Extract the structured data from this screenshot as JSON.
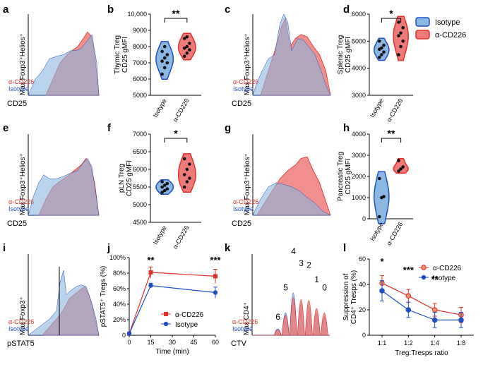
{
  "colors": {
    "isotype_fill": "#8ab8e0",
    "isotype_line": "#1f4fc4",
    "cd226_fill": "#ef7a7a",
    "cd226_line": "#e0302a",
    "overlap": "#8a82c4"
  },
  "legend": {
    "isotype": "Isotype",
    "cd226": "α-CD226"
  },
  "chart_data": [
    {
      "panel": "a",
      "type": "histogram",
      "xlabel": "CD25",
      "ylabel": "Max Foxp3⁺Helios⁺",
      "legend": [
        "α-CD226",
        "Isotype"
      ]
    },
    {
      "panel": "b",
      "type": "violin",
      "title": "Thymic Treg",
      "ylabel": "Thymic Treg\nCD25 gMFI",
      "ylabel_lines": [
        "Thymic Treg",
        "CD25 gMFI"
      ],
      "yticks": [
        "5000",
        "6000",
        "7000",
        "8000",
        "9000",
        "10,000"
      ],
      "ylim": [
        5000,
        10000
      ],
      "categories": [
        "Isotype",
        "α-CD226"
      ],
      "significance": "**",
      "points": {
        "Isotype": [
          6300,
          6700,
          7000,
          7100,
          7300,
          7500,
          7700,
          8000
        ],
        "α-CD226": [
          7400,
          7600,
          7800,
          7900,
          8000,
          8200,
          8500,
          8600
        ]
      }
    },
    {
      "panel": "c",
      "type": "histogram",
      "xlabel": "CD25",
      "ylabel": "Max Foxp3⁺Helios⁺",
      "legend": [
        "α-CD226",
        "Isotype"
      ]
    },
    {
      "panel": "d",
      "type": "violin",
      "ylabel_lines": [
        "Splenic Treg",
        "CD25 gMFI"
      ],
      "yticks": [
        "3000",
        "4000",
        "5000",
        "6000"
      ],
      "ylim": [
        3000,
        6000
      ],
      "categories": [
        "Isotype",
        "α-CD226"
      ],
      "significance": "*",
      "points": {
        "Isotype": [
          4400,
          4500,
          4600,
          4700,
          4750,
          4850,
          5000
        ],
        "α-CD226": [
          4500,
          4800,
          5000,
          5200,
          5300,
          5500,
          5700
        ]
      }
    },
    {
      "panel": "e",
      "type": "histogram",
      "xlabel": "CD25",
      "ylabel": "Max Foxp3⁺Helios⁺",
      "legend": [
        "α-CD226",
        "Isotype"
      ]
    },
    {
      "panel": "f",
      "type": "violin",
      "ylabel_lines": [
        "pLN Treg",
        "CD25 gMFI"
      ],
      "yticks": [
        "4500",
        "5000",
        "5500",
        "6000",
        "6500",
        "7000"
      ],
      "ylim": [
        4500,
        7000
      ],
      "categories": [
        "Isotype",
        "α-CD226"
      ],
      "significance": "*",
      "points": {
        "Isotype": [
          5350,
          5400,
          5450,
          5500,
          5550,
          5600,
          5650
        ],
        "α-CD226": [
          5500,
          5650,
          5750,
          5850,
          6000,
          6150,
          6300
        ]
      }
    },
    {
      "panel": "g",
      "type": "histogram",
      "xlabel": "CD25",
      "ylabel": "Max Foxp3⁺Helios⁺",
      "legend": [
        "α-CD226",
        "Isotype"
      ]
    },
    {
      "panel": "h",
      "type": "violin",
      "ylabel_lines": [
        "Pancreatic Treg",
        "CD25 gMFI"
      ],
      "yticks": [
        "0",
        "1000",
        "2000",
        "3000",
        "4000"
      ],
      "ylim": [
        0,
        4000
      ],
      "categories": [
        "Isotype",
        "α-CD226"
      ],
      "significance": "**",
      "points": {
        "Isotype": [
          100,
          1000,
          1050,
          1900
        ],
        "α-CD226": [
          2250,
          2350,
          2450,
          2750
        ]
      }
    },
    {
      "panel": "i",
      "type": "histogram",
      "xlabel": "pSTAT5",
      "ylabel": "Max Foxp3⁺",
      "legend": [
        "α-CD226",
        "Isotype"
      ]
    },
    {
      "panel": "j",
      "type": "line",
      "xlabel": "Time (min)",
      "ylabel": "pSTAT5⁺ Tregs (%)",
      "x": [
        0,
        15,
        60
      ],
      "xticks": [
        "0",
        "15",
        "30",
        "45",
        "60"
      ],
      "xlim": [
        0,
        60
      ],
      "yticks": [
        "0",
        "20%",
        "40%",
        "60%",
        "80%",
        "100%"
      ],
      "ylim": [
        0,
        100
      ],
      "series": [
        {
          "name": "α-CD226",
          "values": [
            2,
            81,
            76
          ],
          "err": [
            1,
            7,
            9
          ]
        },
        {
          "name": "Isotype",
          "values": [
            2,
            64,
            55
          ],
          "err": [
            1,
            3,
            7
          ]
        }
      ],
      "annotations": [
        {
          "x": 15,
          "text": "**"
        },
        {
          "x": 60,
          "text": "***"
        }
      ]
    },
    {
      "panel": "k",
      "type": "histogram",
      "xlabel": "CTV",
      "ylabel": "Max CD4⁺",
      "legend": [
        "α-CD226",
        "Isotype"
      ],
      "peak_labels": [
        "6",
        "5",
        "4",
        "3",
        "2",
        "1",
        "0"
      ]
    },
    {
      "panel": "l",
      "type": "line",
      "xlabel": "Treg:Tresps ratio",
      "ylabel_lines": [
        "Suppression of",
        "CD4⁺ Tresps (%)"
      ],
      "categories": [
        "1:1",
        "1:2",
        "1:4",
        "1:8"
      ],
      "yticks": [
        "0",
        "20",
        "40",
        "60"
      ],
      "ylim": [
        0,
        60
      ],
      "series": [
        {
          "name": "α-CD226",
          "values": [
            41,
            31,
            20,
            16
          ],
          "err": [
            6,
            5,
            5,
            6
          ]
        },
        {
          "name": "Isotype",
          "values": [
            35,
            20,
            12,
            12
          ],
          "err": [
            8,
            6,
            6,
            6
          ]
        }
      ],
      "annotations": [
        {
          "x": "1:1",
          "text": "*"
        },
        {
          "x": "1:2",
          "text": "***"
        },
        {
          "x": "1:4",
          "text": "**"
        }
      ]
    }
  ]
}
